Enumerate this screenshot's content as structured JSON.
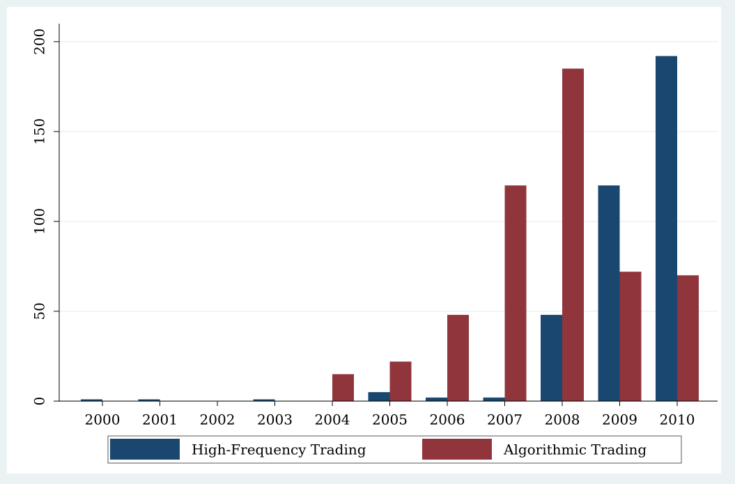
{
  "chart_data": {
    "type": "bar",
    "categories": [
      "2000",
      "2001",
      "2002",
      "2003",
      "2004",
      "2005",
      "2006",
      "2007",
      "2008",
      "2009",
      "2010"
    ],
    "series": [
      {
        "name": "High-Frequency Trading",
        "color": "#1a476f",
        "values": [
          1,
          1,
          0,
          1,
          0,
          5,
          2,
          2,
          48,
          120,
          192
        ]
      },
      {
        "name": "Algorithmic Trading",
        "color": "#90353b",
        "values": [
          0,
          0,
          0,
          0,
          15,
          22,
          48,
          120,
          185,
          72,
          70
        ]
      }
    ],
    "ylim": [
      0,
      210
    ],
    "yticks": [
      0,
      50,
      100,
      150,
      200
    ],
    "grid": true,
    "legend": "bottom"
  }
}
